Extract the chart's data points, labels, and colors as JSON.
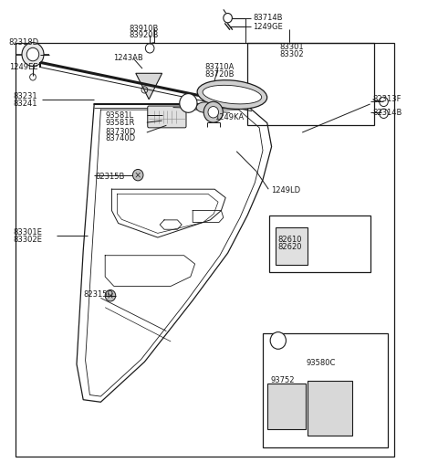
{
  "bg_color": "#ffffff",
  "line_color": "#1a1a1a",
  "fs": 6.0,
  "figsize": [
    4.8,
    5.18
  ],
  "dpi": 100,
  "labels": {
    "83714B": [
      0.578,
      0.962,
      "left"
    ],
    "1249GE": [
      0.578,
      0.944,
      "left"
    ],
    "83910B": [
      0.295,
      0.94,
      "left"
    ],
    "83920B": [
      0.295,
      0.926,
      "left"
    ],
    "1243AB": [
      0.258,
      0.878,
      "left"
    ],
    "82318D": [
      0.02,
      0.91,
      "left"
    ],
    "1249EE": [
      0.02,
      0.858,
      "left"
    ],
    "83231": [
      0.03,
      0.796,
      "left"
    ],
    "83241": [
      0.03,
      0.781,
      "left"
    ],
    "83301": [
      0.638,
      0.9,
      "left"
    ],
    "83302": [
      0.638,
      0.885,
      "left"
    ],
    "83710A": [
      0.468,
      0.858,
      "left"
    ],
    "83720B": [
      0.468,
      0.843,
      "left"
    ],
    "1249KA": [
      0.49,
      0.752,
      "left"
    ],
    "93581L": [
      0.24,
      0.756,
      "left"
    ],
    "93581R": [
      0.24,
      0.741,
      "left"
    ],
    "83730D": [
      0.24,
      0.722,
      "left"
    ],
    "83740D": [
      0.24,
      0.707,
      "left"
    ],
    "82313F": [
      0.85,
      0.79,
      "left"
    ],
    "82314B": [
      0.85,
      0.762,
      "left"
    ],
    "82315B": [
      0.218,
      0.626,
      "left"
    ],
    "1249LD": [
      0.618,
      0.598,
      "left"
    ],
    "83301E": [
      0.03,
      0.508,
      "left"
    ],
    "83302E": [
      0.03,
      0.493,
      "left"
    ],
    "82315D": [
      0.19,
      0.378,
      "left"
    ],
    "82610": [
      0.635,
      0.493,
      "left"
    ],
    "82620": [
      0.635,
      0.478,
      "left"
    ],
    "93580C": [
      0.7,
      0.232,
      "left"
    ],
    "93752": [
      0.618,
      0.196,
      "left"
    ]
  }
}
